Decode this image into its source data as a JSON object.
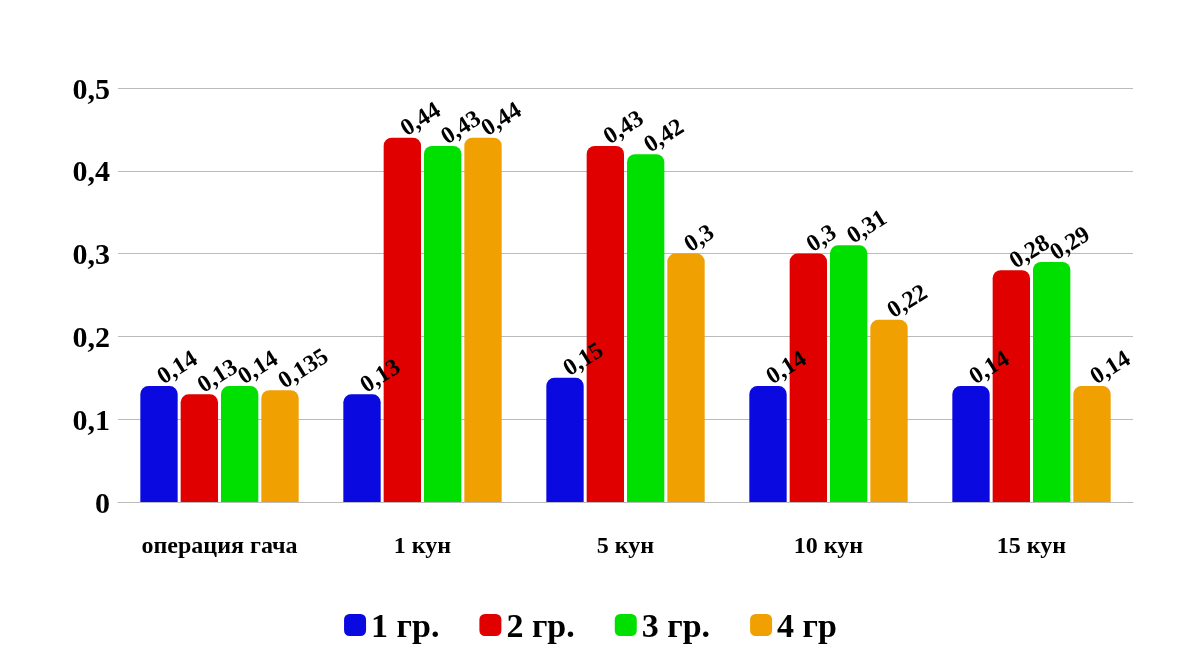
{
  "chart_data": {
    "type": "bar",
    "categories": [
      "операция гача",
      "1 кун",
      "5 кун",
      "10 кун",
      "15 кун"
    ],
    "series": [
      {
        "name": "1 гр.",
        "color": "#0a0ae0",
        "values": [
          0.14,
          0.13,
          0.15,
          0.14,
          0.14
        ],
        "value_labels": [
          "0,14",
          "0,13",
          "0,15",
          "0,14",
          "0,14"
        ]
      },
      {
        "name": "2 гр.",
        "color": "#e00000",
        "values": [
          0.13,
          0.44,
          0.43,
          0.3,
          0.28
        ],
        "value_labels": [
          "0,13",
          "0,44",
          "0,43",
          "0,3",
          "0,28"
        ]
      },
      {
        "name": "3 гр.",
        "color": "#00e000",
        "values": [
          0.14,
          0.43,
          0.42,
          0.31,
          0.29
        ],
        "value_labels": [
          "0,14",
          "0,43",
          "0,42",
          "0,31",
          "0,29"
        ]
      },
      {
        "name": "4 гр",
        "color": "#f0a000",
        "values": [
          0.135,
          0.44,
          0.3,
          0.22,
          0.14
        ],
        "value_labels": [
          "0,135",
          "0,44",
          "0,3",
          "0,22",
          "0,14"
        ]
      }
    ],
    "ylim": [
      0,
      0.5
    ],
    "yticks": [
      {
        "value": 0,
        "label": "0"
      },
      {
        "value": 0.1,
        "label": "0,1"
      },
      {
        "value": 0.2,
        "label": "0,2"
      },
      {
        "value": 0.3,
        "label": "0,3"
      },
      {
        "value": 0.4,
        "label": "0,4"
      },
      {
        "value": 0.5,
        "label": "0,5"
      }
    ],
    "grid": "y",
    "legend": "bottom"
  }
}
